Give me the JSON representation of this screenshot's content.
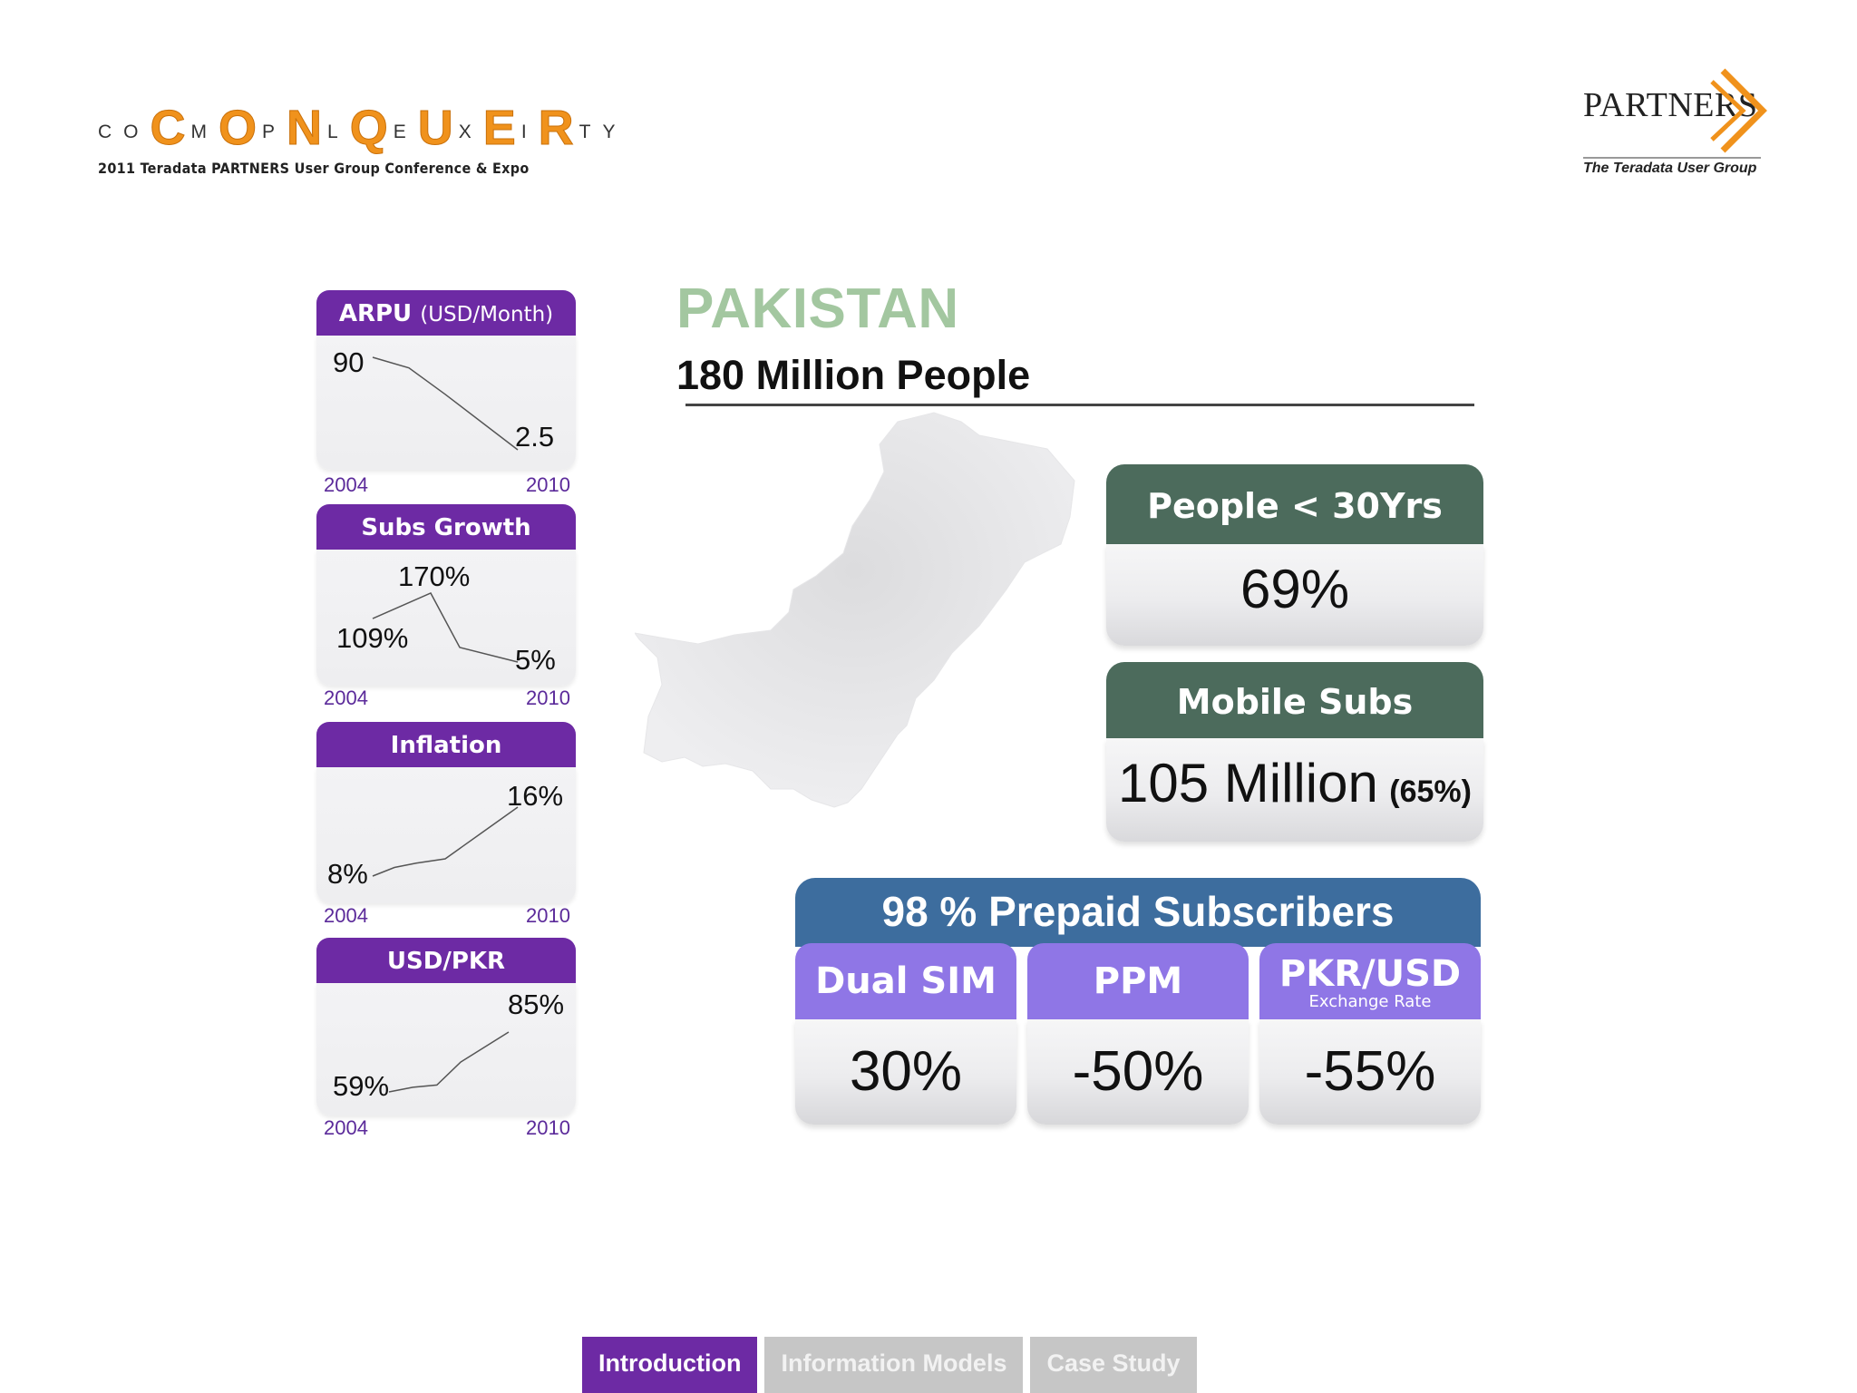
{
  "header": {
    "conquer_logo": {
      "letters": [
        {
          "t": "C",
          "big": false
        },
        {
          "t": "O",
          "big": false
        },
        {
          "t": "C",
          "big": true
        },
        {
          "t": "M",
          "big": false
        },
        {
          "t": "O",
          "big": true
        },
        {
          "t": "P",
          "big": false
        },
        {
          "t": "N",
          "big": true
        },
        {
          "t": "L",
          "big": false
        },
        {
          "t": "Q",
          "big": true
        },
        {
          "t": "E",
          "big": false
        },
        {
          "t": "U",
          "big": true
        },
        {
          "t": "X",
          "big": false
        },
        {
          "t": "E",
          "big": true
        },
        {
          "t": "I",
          "big": false
        },
        {
          "t": "R",
          "big": true
        },
        {
          "t": "T",
          "big": false
        },
        {
          "t": "Y",
          "big": false
        }
      ],
      "subtitle": "2011 Teradata PARTNERS User Group Conference & Expo"
    },
    "partners_logo": {
      "name": "PARTNERS",
      "tagline": "The Teradata User Group"
    }
  },
  "title": "PAKISTAN",
  "subtitle": "180 Million People",
  "mini_charts": [
    {
      "title": "ARPU",
      "unit": "(USD/Month)",
      "start_label": "90",
      "end_label": "2.5",
      "start_year": "2004",
      "end_year": "2010",
      "points": [
        [
          0,
          90
        ],
        [
          0.25,
          80
        ],
        [
          0.5,
          55
        ],
        [
          1,
          2.5
        ]
      ]
    },
    {
      "title": "Subs Growth",
      "unit": "",
      "start_label": "109%",
      "peak_label": "170%",
      "end_label": "5%",
      "start_year": "2004",
      "end_year": "2010",
      "points": [
        [
          0,
          109
        ],
        [
          0.4,
          170
        ],
        [
          0.6,
          40
        ],
        [
          1,
          5
        ]
      ]
    },
    {
      "title": "Inflation",
      "unit": "",
      "start_label": "8%",
      "end_label": "16%",
      "start_year": "2004",
      "end_year": "2010",
      "points": [
        [
          0,
          8
        ],
        [
          0.15,
          9
        ],
        [
          0.3,
          9.5
        ],
        [
          0.5,
          10
        ],
        [
          0.75,
          13
        ],
        [
          1,
          16
        ]
      ]
    },
    {
      "title": "USD/PKR",
      "unit": "",
      "start_label": "59%",
      "end_label": "85%",
      "start_year": "2004",
      "end_year": "2010",
      "points": [
        [
          0,
          59
        ],
        [
          0.2,
          61
        ],
        [
          0.4,
          62
        ],
        [
          0.6,
          72
        ],
        [
          1,
          85
        ]
      ]
    }
  ],
  "stats": [
    {
      "label": "People < 30Yrs",
      "value": "69%",
      "extra": ""
    },
    {
      "label": "Mobile Subs",
      "value": "105 Million",
      "extra": "(65%)"
    }
  ],
  "prepaid": {
    "title": "98 % Prepaid Subscribers",
    "columns": [
      {
        "label": "Dual SIM",
        "sublabel": "",
        "value": "30%"
      },
      {
        "label": "PPM",
        "sublabel": "",
        "value": "-50%"
      },
      {
        "label": "PKR/USD",
        "sublabel": "Exchange Rate",
        "value": "-55%"
      }
    ]
  },
  "tabs": [
    {
      "label": "Introduction",
      "active": true
    },
    {
      "label": "Information Models",
      "active": false
    },
    {
      "label": "Case Study",
      "active": false
    }
  ],
  "colors": {
    "purple": "#6d2aa4",
    "green_head": "#4c6b5c",
    "blue_head": "#3d6d9e",
    "lavender_head": "#8f76e6",
    "title_green": "#a3c7a0",
    "logo_orange": "#f0921c"
  }
}
